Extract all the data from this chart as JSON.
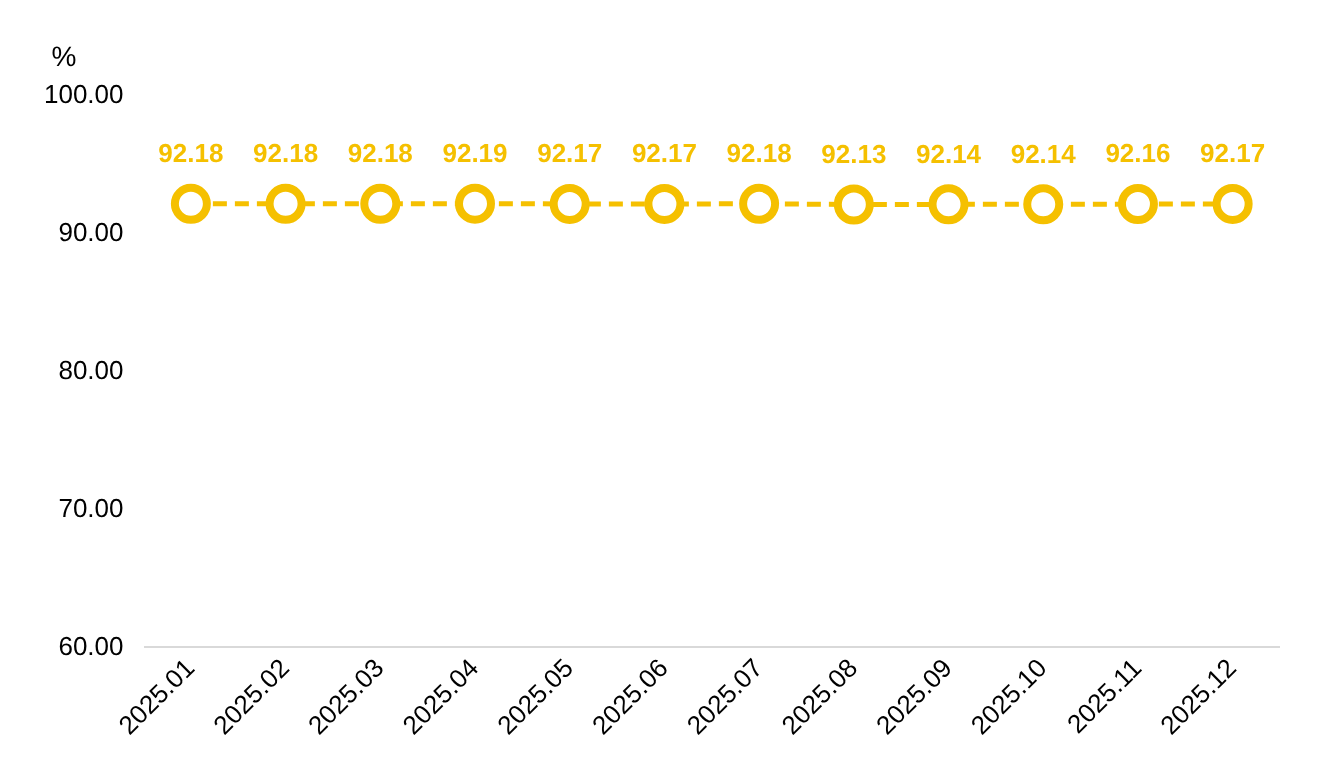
{
  "chart_data": {
    "type": "line",
    "ylabel": "%",
    "categories": [
      "2025.01",
      "2025.02",
      "2025.03",
      "2025.04",
      "2025.05",
      "2025.06",
      "2025.07",
      "2025.08",
      "2025.09",
      "2025.10",
      "2025.11",
      "2025.12"
    ],
    "series": [
      {
        "color": "#f5c000",
        "values": [
          92.18,
          92.18,
          92.18,
          92.19,
          92.17,
          92.17,
          92.18,
          92.13,
          92.14,
          92.14,
          92.16,
          92.17
        ]
      }
    ],
    "ylim": [
      60,
      100
    ],
    "yticks": [
      {
        "value": 60,
        "label": "60.00"
      },
      {
        "value": 70,
        "label": "70.00"
      },
      {
        "value": 80,
        "label": "80.00"
      },
      {
        "value": 90,
        "label": "90.00"
      },
      {
        "value": 100,
        "label": "100.00"
      }
    ],
    "grid": false,
    "legend": false,
    "marker": "circle",
    "line_style": "dashed",
    "data_labels": true
  }
}
